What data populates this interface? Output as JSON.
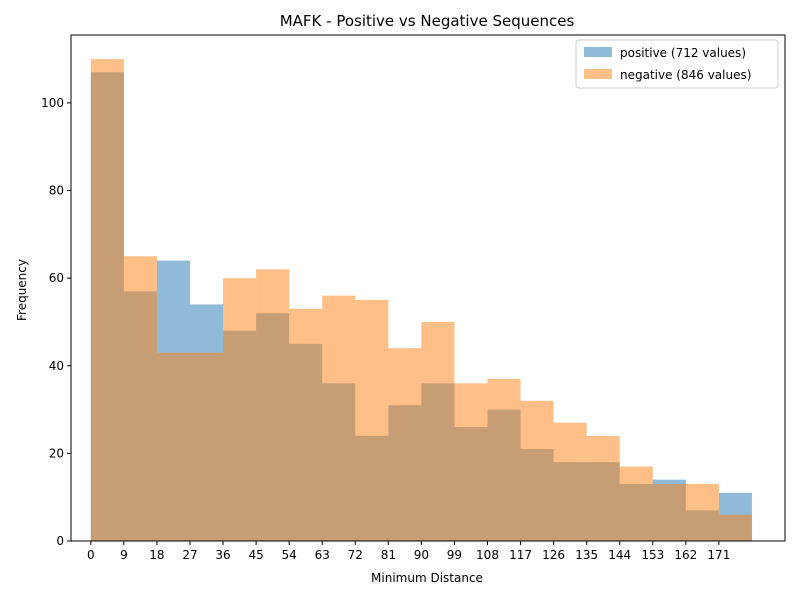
{
  "chart_data": {
    "type": "bar",
    "title": "MAFK - Positive vs Negative Sequences",
    "xlabel": "Minimum Distance",
    "ylabel": "Frequency",
    "bin_width": 9,
    "bin_starts": [
      0,
      9,
      18,
      27,
      36,
      45,
      54,
      63,
      72,
      81,
      90,
      99,
      108,
      117,
      126,
      135,
      144,
      153,
      162,
      171
    ],
    "xticks": [
      "0",
      "9",
      "18",
      "27",
      "36",
      "45",
      "54",
      "63",
      "72",
      "81",
      "90",
      "99",
      "108",
      "117",
      "126",
      "135",
      "144",
      "153",
      "162",
      "171"
    ],
    "yticks": [
      "0",
      "20",
      "40",
      "60",
      "80",
      "100"
    ],
    "xlim": [
      -5.4,
      189
    ],
    "ylim": [
      0,
      115.5
    ],
    "grid": false,
    "legend_position": "top-right",
    "series": [
      {
        "name": "positive (712 values)",
        "color": "#1f77b4",
        "opacity": 0.5,
        "values": [
          107,
          57,
          64,
          54,
          48,
          52,
          45,
          36,
          24,
          31,
          36,
          26,
          30,
          21,
          18,
          18,
          13,
          14,
          7,
          11
        ]
      },
      {
        "name": "negative (846 values)",
        "color": "#ff7f0e",
        "opacity": 0.5,
        "values": [
          110,
          65,
          43,
          43,
          60,
          62,
          53,
          56,
          55,
          44,
          50,
          36,
          37,
          32,
          27,
          24,
          17,
          13,
          13,
          6
        ]
      }
    ]
  }
}
